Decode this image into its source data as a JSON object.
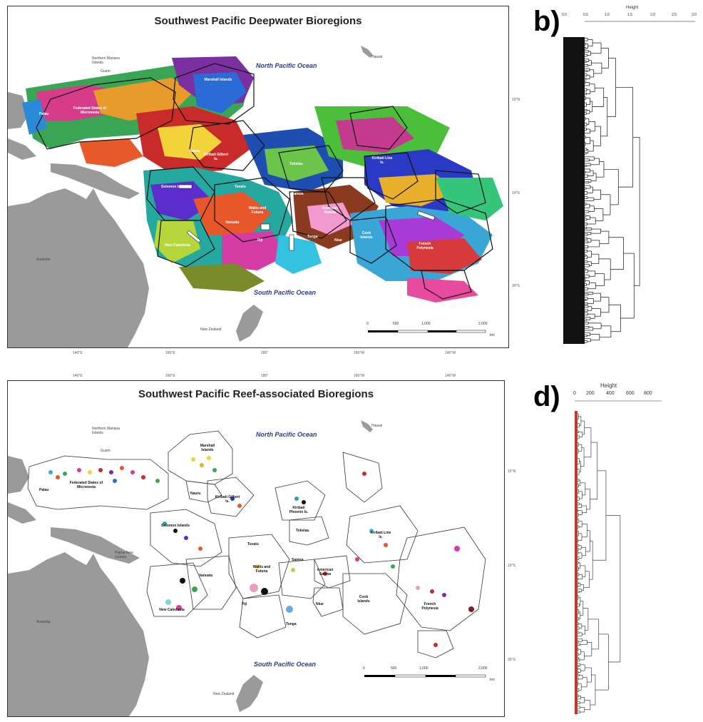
{
  "panels": {
    "a": {
      "letter": "a)",
      "title": "Southwest Pacific Deepwater Bioregions",
      "oceans": [
        "North Pacific Ocean",
        "South Pacific Ocean"
      ],
      "places": [
        "Northern Mariana Islands",
        "Guam",
        "Hawaii",
        "Australia",
        "New Zealand"
      ],
      "regions": [
        "Palau",
        "Federated States of Micronesia",
        "Marshall Islands",
        "Nauru",
        "Kiribati Gilbert Is.",
        "Solomon Islands",
        "Tuvalu",
        "Wallis and Futuna",
        "Samoa",
        "New Caledonia",
        "Vanuatu",
        "Fiji",
        "Tonga",
        "American Samoa",
        "Niue",
        "Cook Islands",
        "Kiribati Line Is.",
        "French Polynesia",
        "Tokelau"
      ],
      "lat_ticks": [
        "10°N",
        "10°S",
        "30°S"
      ],
      "lon_ticks": [
        "140°E",
        "160°E",
        "180°",
        "160°W",
        "140°W"
      ],
      "scale": [
        "0",
        "500",
        "1,000",
        "2,000"
      ],
      "scale_unit": "km"
    },
    "b": {
      "letter": "b)",
      "axis_title": "Height",
      "ticks": [
        "0.0",
        "0.5",
        "1.0",
        "1.5",
        "2.0",
        "2.5",
        "3.0"
      ]
    },
    "c": {
      "letter": "c)",
      "title": "Southwest Pacific Reef-associated Bioregions",
      "oceans": [
        "North Pacific Ocean",
        "South Pacific Ocean"
      ],
      "places": [
        "Northern Mariana Islands",
        "Guam",
        "Hawaii",
        "Papua New Guinea",
        "Australia",
        "New Zealand"
      ],
      "regions": [
        "Palau",
        "Federated States of Micronesia",
        "Marshall Islands",
        "Nauru",
        "Kiribati Gilbert Is.",
        "Kiribati Phoenix Is.",
        "Solomon Islands",
        "Tuvalu",
        "Tokelau",
        "Wallis and Futuna",
        "Samoa",
        "American Samoa",
        "Vanuatu",
        "New Caledonia",
        "Fiji",
        "Tonga",
        "Niue",
        "Cook Islands",
        "Kiribati Line Is.",
        "French Polynesia"
      ],
      "lat_ticks": [
        "10°N",
        "10°S",
        "30°S"
      ],
      "lon_ticks": [
        "140°E",
        "160°E",
        "180°",
        "160°W",
        "140°W"
      ],
      "scale": [
        "0",
        "500",
        "1,000",
        "2,000"
      ],
      "scale_unit": "km"
    },
    "d": {
      "letter": "d)",
      "axis_title": "Height",
      "ticks": [
        "0",
        "200",
        "400",
        "600",
        "800"
      ]
    }
  },
  "colors": {
    "land": "#9a9a9a",
    "region_border": "#111111",
    "dendro_a": "#111111",
    "dendro_d_leaves": "#c0392b",
    "ocean_text": "#2b3a8e"
  }
}
